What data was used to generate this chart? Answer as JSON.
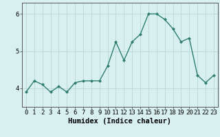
{
  "x": [
    0,
    1,
    2,
    3,
    4,
    5,
    6,
    7,
    8,
    9,
    10,
    11,
    12,
    13,
    14,
    15,
    16,
    17,
    18,
    19,
    20,
    21,
    22,
    23
  ],
  "y": [
    3.9,
    4.2,
    4.1,
    3.9,
    4.05,
    3.9,
    4.15,
    4.2,
    4.2,
    4.2,
    4.6,
    5.25,
    4.75,
    5.25,
    5.45,
    6.0,
    6.0,
    5.85,
    5.6,
    5.25,
    5.35,
    4.35,
    4.15,
    4.35
  ],
  "line_color": "#2e7d6e",
  "marker": "D",
  "marker_size": 2.2,
  "linewidth": 1.0,
  "bg_color": "#d9f0f0",
  "grid_color": "#b8d8d8",
  "xlabel": "Humidex (Indice chaleur)",
  "xlabel_fontsize": 7.5,
  "tick_fontsize": 6.5,
  "ylim": [
    3.5,
    6.3
  ],
  "xlim": [
    -0.5,
    23.5
  ],
  "yticks": [
    4,
    5,
    6
  ],
  "xticks": [
    0,
    1,
    2,
    3,
    4,
    5,
    6,
    7,
    8,
    9,
    10,
    11,
    12,
    13,
    14,
    15,
    16,
    17,
    18,
    19,
    20,
    21,
    22,
    23
  ],
  "xtick_labels": [
    "0",
    "1",
    "2",
    "3",
    "4",
    "5",
    "6",
    "7",
    "8",
    "9",
    "10",
    "11",
    "12",
    "13",
    "14",
    "15",
    "16",
    "17",
    "18",
    "19",
    "20",
    "21",
    "22",
    "23"
  ],
  "spine_color": "#555555",
  "axis_bg_color": "#d9f0f0"
}
